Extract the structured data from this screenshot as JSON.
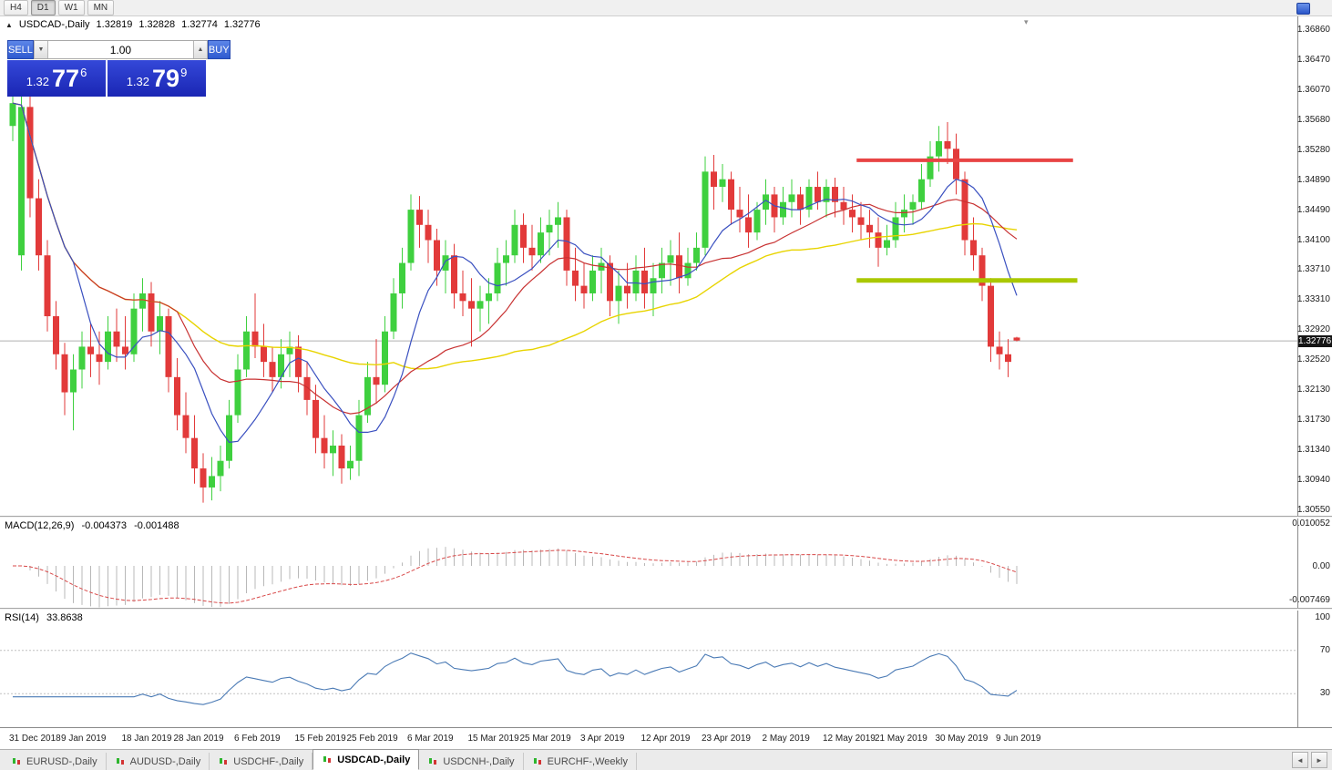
{
  "toolbar": {
    "timeframes": [
      "H4",
      "D1",
      "W1",
      "MN"
    ],
    "active": "D1"
  },
  "chart_header": {
    "collapse": "▲",
    "symbol": "USDCAD-,Daily",
    "open": "1.32819",
    "high": "1.32828",
    "low": "1.32774",
    "close": "1.32776",
    "shift_marker": "▾"
  },
  "trade_panel": {
    "sell_label": "SELL",
    "buy_label": "BUY",
    "volume": "1.00",
    "vol_down": "▼",
    "vol_up": "▲",
    "sell_price": {
      "base": "1.32",
      "big": "77",
      "sup": "6"
    },
    "buy_price": {
      "base": "1.32",
      "big": "79",
      "sup": "9"
    }
  },
  "price_axis": {
    "labels": [
      "1.36860",
      "1.36470",
      "1.36070",
      "1.35680",
      "1.35280",
      "1.34890",
      "1.34490",
      "1.34100",
      "1.33710",
      "1.33310",
      "1.32920",
      "1.32520",
      "1.32130",
      "1.31730",
      "1.31340",
      "1.30940",
      "1.30550"
    ],
    "current": "1.32776",
    "top_price": 1.3686,
    "bottom_price": 1.3055
  },
  "macd": {
    "label": "MACD(12,26,9)",
    "value_main": "-0.004373",
    "value_signal": "-0.001488",
    "axis": [
      "0.010052",
      "0.00",
      "-0.007469"
    ],
    "params": {
      "fast": 12,
      "slow": 26,
      "signal": 9
    },
    "colors": {
      "histogram": "#b8b8b8",
      "signal": "#d84848"
    }
  },
  "rsi": {
    "label": "RSI(14)",
    "value": "33.8638",
    "period": 14,
    "axis": [
      "100",
      "70",
      "30"
    ],
    "levels": [
      70,
      30
    ],
    "color": "#4a7ab5"
  },
  "date_axis": {
    "ticks": [
      {
        "label": "31 Dec 2018",
        "i": 0
      },
      {
        "label": "9 Jan 2019",
        "i": 6
      },
      {
        "label": "18 Jan 2019",
        "i": 13
      },
      {
        "label": "28 Jan 2019",
        "i": 19
      },
      {
        "label": "6 Feb 2019",
        "i": 26
      },
      {
        "label": "15 Feb 2019",
        "i": 33
      },
      {
        "label": "25 Feb 2019",
        "i": 39
      },
      {
        "label": "6 Mar 2019",
        "i": 46
      },
      {
        "label": "15 Mar 2019",
        "i": 53
      },
      {
        "label": "25 Mar 2019",
        "i": 59
      },
      {
        "label": "3 Apr 2019",
        "i": 66
      },
      {
        "label": "12 Apr 2019",
        "i": 73
      },
      {
        "label": "23 Apr 2019",
        "i": 80
      },
      {
        "label": "2 May 2019",
        "i": 87
      },
      {
        "label": "12 May 2019",
        "i": 94
      },
      {
        "label": "21 May 2019",
        "i": 100
      },
      {
        "label": "30 May 2019",
        "i": 107
      },
      {
        "label": "9 Jun 2019",
        "i": 114
      }
    ]
  },
  "tabs": {
    "items": [
      {
        "label": "EURUSD-,Daily"
      },
      {
        "label": "AUDUSD-,Daily"
      },
      {
        "label": "USDCHF-,Daily"
      },
      {
        "label": "USDCAD-,Daily"
      },
      {
        "label": "USDCNH-,Daily"
      },
      {
        "label": "EURCHF-,Weekly"
      }
    ],
    "active_index": 3,
    "nav_left": "◄",
    "nav_right": "►"
  },
  "chart_data": {
    "type": "candlestick",
    "symbol": "USDCAD",
    "timeframe": "Daily",
    "y_axis": {
      "top": 1.3686,
      "bottom": 1.3055
    },
    "colors": {
      "bull": "#3fd03f",
      "bear": "#e23a3a",
      "current_line": "#b0b0b0"
    },
    "moving_averages": [
      {
        "period": 45,
        "color": "#e8d400",
        "width": 1.4
      },
      {
        "period": 20,
        "color": "#c83232",
        "width": 1.2
      },
      {
        "period": 8,
        "color": "#3a50c0",
        "width": 1.2
      }
    ],
    "lines": [
      {
        "name": "resistance-line",
        "price": 1.3515,
        "from_index": 97.5,
        "to_index": 122.5,
        "color": "#e84444",
        "width": 4
      },
      {
        "name": "support-line",
        "price": 1.3357,
        "from_index": 97.5,
        "to_index": 123.0,
        "color": "#aac800",
        "width": 5
      }
    ],
    "dates": [
      "2018-12-31",
      "2019-01-02",
      "2019-01-03",
      "2019-01-04",
      "2019-01-07",
      "2019-01-08",
      "2019-01-09",
      "2019-01-10",
      "2019-01-11",
      "2019-01-14",
      "2019-01-15",
      "2019-01-16",
      "2019-01-17",
      "2019-01-18",
      "2019-01-21",
      "2019-01-22",
      "2019-01-23",
      "2019-01-24",
      "2019-01-25",
      "2019-01-28",
      "2019-01-29",
      "2019-01-30",
      "2019-01-31",
      "2019-02-01",
      "2019-02-04",
      "2019-02-05",
      "2019-02-06",
      "2019-02-07",
      "2019-02-08",
      "2019-02-11",
      "2019-02-12",
      "2019-02-13",
      "2019-02-14",
      "2019-02-15",
      "2019-02-18",
      "2019-02-19",
      "2019-02-20",
      "2019-02-21",
      "2019-02-22",
      "2019-02-25",
      "2019-02-26",
      "2019-02-27",
      "2019-02-28",
      "2019-03-01",
      "2019-03-04",
      "2019-03-05",
      "2019-03-06",
      "2019-03-07",
      "2019-03-08",
      "2019-03-11",
      "2019-03-12",
      "2019-03-13",
      "2019-03-14",
      "2019-03-15",
      "2019-03-18",
      "2019-03-19",
      "2019-03-20",
      "2019-03-21",
      "2019-03-22",
      "2019-03-25",
      "2019-03-26",
      "2019-03-27",
      "2019-03-28",
      "2019-03-29",
      "2019-04-01",
      "2019-04-02",
      "2019-04-03",
      "2019-04-04",
      "2019-04-05",
      "2019-04-08",
      "2019-04-09",
      "2019-04-10",
      "2019-04-11",
      "2019-04-12",
      "2019-04-15",
      "2019-04-16",
      "2019-04-17",
      "2019-04-18",
      "2019-04-19",
      "2019-04-22",
      "2019-04-23",
      "2019-04-24",
      "2019-04-25",
      "2019-04-26",
      "2019-04-29",
      "2019-04-30",
      "2019-05-01",
      "2019-05-02",
      "2019-05-03",
      "2019-05-06",
      "2019-05-07",
      "2019-05-08",
      "2019-05-09",
      "2019-05-10",
      "2019-05-13",
      "2019-05-14",
      "2019-05-15",
      "2019-05-16",
      "2019-05-17",
      "2019-05-20",
      "2019-05-21",
      "2019-05-22",
      "2019-05-23",
      "2019-05-24",
      "2019-05-27",
      "2019-05-28",
      "2019-05-29",
      "2019-05-30",
      "2019-05-31",
      "2019-06-03",
      "2019-06-04",
      "2019-06-05",
      "2019-06-06",
      "2019-06-07",
      "2019-06-10",
      "2019-06-11",
      "2019-06-12"
    ],
    "ohlc": [
      [
        1.356,
        1.361,
        1.354,
        1.359
      ],
      [
        1.339,
        1.3605,
        1.337,
        1.3585
      ],
      [
        1.3585,
        1.3615,
        1.344,
        1.3465
      ],
      [
        1.3465,
        1.349,
        1.337,
        1.339
      ],
      [
        1.339,
        1.341,
        1.329,
        1.331
      ],
      [
        1.331,
        1.333,
        1.324,
        1.326
      ],
      [
        1.326,
        1.3275,
        1.318,
        1.321
      ],
      [
        1.321,
        1.326,
        1.316,
        1.324
      ],
      [
        1.324,
        1.329,
        1.3215,
        1.327
      ],
      [
        1.327,
        1.33,
        1.323,
        1.326
      ],
      [
        1.326,
        1.329,
        1.322,
        1.325
      ],
      [
        1.325,
        1.331,
        1.324,
        1.329
      ],
      [
        1.329,
        1.332,
        1.325,
        1.327
      ],
      [
        1.327,
        1.331,
        1.324,
        1.326
      ],
      [
        1.326,
        1.334,
        1.325,
        1.332
      ],
      [
        1.332,
        1.336,
        1.329,
        1.334
      ],
      [
        1.334,
        1.3355,
        1.327,
        1.329
      ],
      [
        1.329,
        1.333,
        1.326,
        1.331
      ],
      [
        1.331,
        1.332,
        1.321,
        1.323
      ],
      [
        1.323,
        1.3255,
        1.316,
        1.318
      ],
      [
        1.318,
        1.321,
        1.313,
        1.315
      ],
      [
        1.315,
        1.318,
        1.309,
        1.311
      ],
      [
        1.311,
        1.313,
        1.3065,
        1.3085
      ],
      [
        1.3085,
        1.3125,
        1.3068,
        1.31
      ],
      [
        1.31,
        1.314,
        1.308,
        1.312
      ],
      [
        1.312,
        1.32,
        1.311,
        1.318
      ],
      [
        1.318,
        1.326,
        1.317,
        1.324
      ],
      [
        1.324,
        1.331,
        1.323,
        1.329
      ],
      [
        1.329,
        1.334,
        1.3255,
        1.327
      ],
      [
        1.327,
        1.33,
        1.323,
        1.325
      ],
      [
        1.325,
        1.327,
        1.321,
        1.323
      ],
      [
        1.323,
        1.328,
        1.3215,
        1.326
      ],
      [
        1.326,
        1.329,
        1.323,
        1.327
      ],
      [
        1.327,
        1.3285,
        1.321,
        1.323
      ],
      [
        1.323,
        1.325,
        1.318,
        1.32
      ],
      [
        1.32,
        1.322,
        1.313,
        1.315
      ],
      [
        1.315,
        1.318,
        1.311,
        1.313
      ],
      [
        1.313,
        1.316,
        1.31,
        1.314
      ],
      [
        1.314,
        1.3155,
        1.309,
        1.311
      ],
      [
        1.311,
        1.314,
        1.3095,
        1.312
      ],
      [
        1.312,
        1.32,
        1.31,
        1.318
      ],
      [
        1.318,
        1.325,
        1.317,
        1.323
      ],
      [
        1.323,
        1.328,
        1.3195,
        1.322
      ],
      [
        1.322,
        1.331,
        1.321,
        1.329
      ],
      [
        1.329,
        1.336,
        1.328,
        1.334
      ],
      [
        1.334,
        1.34,
        1.332,
        1.338
      ],
      [
        1.338,
        1.347,
        1.337,
        1.345
      ],
      [
        1.345,
        1.3468,
        1.34,
        1.343
      ],
      [
        1.343,
        1.345,
        1.338,
        1.341
      ],
      [
        1.341,
        1.3425,
        1.335,
        1.337
      ],
      [
        1.337,
        1.341,
        1.334,
        1.339
      ],
      [
        1.339,
        1.3405,
        1.332,
        1.334
      ],
      [
        1.334,
        1.337,
        1.331,
        1.333
      ],
      [
        1.333,
        1.336,
        1.327,
        1.332
      ],
      [
        1.332,
        1.335,
        1.329,
        1.333
      ],
      [
        1.333,
        1.336,
        1.33,
        1.334
      ],
      [
        1.334,
        1.34,
        1.333,
        1.338
      ],
      [
        1.338,
        1.341,
        1.335,
        1.339
      ],
      [
        1.339,
        1.345,
        1.338,
        1.343
      ],
      [
        1.343,
        1.3445,
        1.338,
        1.34
      ],
      [
        1.34,
        1.343,
        1.337,
        1.339
      ],
      [
        1.339,
        1.344,
        1.338,
        1.342
      ],
      [
        1.342,
        1.345,
        1.339,
        1.343
      ],
      [
        1.343,
        1.346,
        1.34,
        1.344
      ],
      [
        1.344,
        1.345,
        1.335,
        1.337
      ],
      [
        1.337,
        1.34,
        1.333,
        1.335
      ],
      [
        1.335,
        1.338,
        1.332,
        1.334
      ],
      [
        1.334,
        1.339,
        1.333,
        1.337
      ],
      [
        1.337,
        1.34,
        1.334,
        1.338
      ],
      [
        1.338,
        1.339,
        1.331,
        1.333
      ],
      [
        1.333,
        1.337,
        1.33,
        1.335
      ],
      [
        1.335,
        1.338,
        1.332,
        1.334
      ],
      [
        1.334,
        1.339,
        1.333,
        1.337
      ],
      [
        1.337,
        1.34,
        1.332,
        1.334
      ],
      [
        1.334,
        1.338,
        1.331,
        1.336
      ],
      [
        1.336,
        1.34,
        1.334,
        1.338
      ],
      [
        1.338,
        1.341,
        1.335,
        1.339
      ],
      [
        1.339,
        1.342,
        1.334,
        1.336
      ],
      [
        1.336,
        1.34,
        1.335,
        1.338
      ],
      [
        1.338,
        1.342,
        1.337,
        1.34
      ],
      [
        1.34,
        1.352,
        1.339,
        1.35
      ],
      [
        1.35,
        1.3522,
        1.345,
        1.348
      ],
      [
        1.348,
        1.351,
        1.346,
        1.349
      ],
      [
        1.349,
        1.35,
        1.343,
        1.345
      ],
      [
        1.345,
        1.348,
        1.342,
        1.344
      ],
      [
        1.344,
        1.347,
        1.34,
        1.342
      ],
      [
        1.342,
        1.346,
        1.341,
        1.345
      ],
      [
        1.345,
        1.349,
        1.343,
        1.347
      ],
      [
        1.347,
        1.348,
        1.342,
        1.344
      ],
      [
        1.344,
        1.348,
        1.343,
        1.346
      ],
      [
        1.346,
        1.349,
        1.344,
        1.347
      ],
      [
        1.347,
        1.348,
        1.343,
        1.345
      ],
      [
        1.345,
        1.349,
        1.344,
        1.348
      ],
      [
        1.348,
        1.35,
        1.345,
        1.346
      ],
      [
        1.346,
        1.349,
        1.344,
        1.348
      ],
      [
        1.348,
        1.3492,
        1.344,
        1.346
      ],
      [
        1.346,
        1.348,
        1.343,
        1.345
      ],
      [
        1.345,
        1.347,
        1.342,
        1.344
      ],
      [
        1.344,
        1.346,
        1.341,
        1.343
      ],
      [
        1.343,
        1.345,
        1.34,
        1.342
      ],
      [
        1.342,
        1.344,
        1.3375,
        1.34
      ],
      [
        1.34,
        1.343,
        1.339,
        1.341
      ],
      [
        1.341,
        1.346,
        1.34,
        1.344
      ],
      [
        1.344,
        1.347,
        1.342,
        1.345
      ],
      [
        1.345,
        1.347,
        1.343,
        1.346
      ],
      [
        1.346,
        1.351,
        1.345,
        1.349
      ],
      [
        1.349,
        1.354,
        1.348,
        1.352
      ],
      [
        1.352,
        1.356,
        1.35,
        1.354
      ],
      [
        1.354,
        1.3565,
        1.351,
        1.353
      ],
      [
        1.353,
        1.355,
        1.347,
        1.349
      ],
      [
        1.349,
        1.35,
        1.339,
        1.341
      ],
      [
        1.341,
        1.344,
        1.337,
        1.339
      ],
      [
        1.339,
        1.34,
        1.333,
        1.335
      ],
      [
        1.335,
        1.336,
        1.325,
        1.327
      ],
      [
        1.327,
        1.329,
        1.324,
        1.326
      ],
      [
        1.326,
        1.328,
        1.323,
        1.325
      ],
      [
        1.3282,
        1.3283,
        1.3277,
        1.3278
      ]
    ]
  }
}
